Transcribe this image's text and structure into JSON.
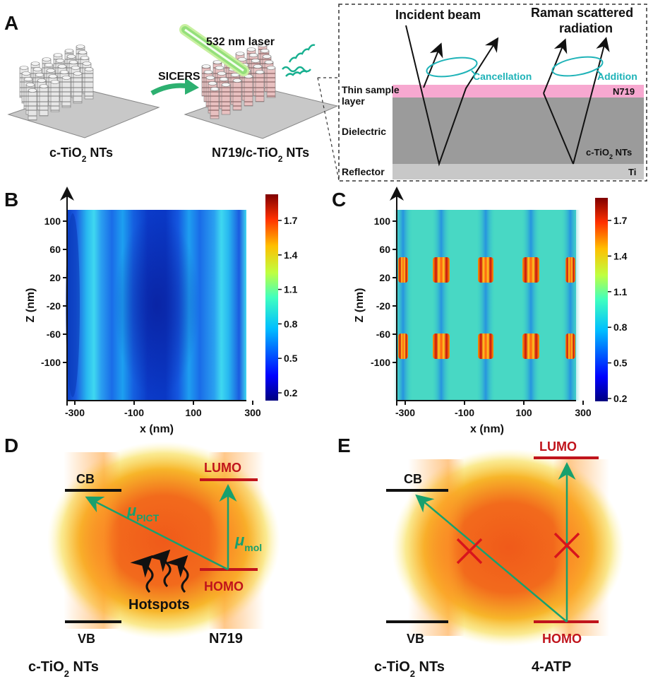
{
  "panels": {
    "a": "A",
    "b": "B",
    "c": "C",
    "d": "D",
    "e": "E"
  },
  "panel_a": {
    "left_label": "c-TiO",
    "left_sub": "2",
    "left_suffix": " NTs",
    "right_label": "N719/c-TiO",
    "right_sub": "2",
    "right_suffix": " NTs",
    "arrow_label": "SICERS",
    "laser_label": "532 nm laser",
    "incident_beam": "Incident beam",
    "raman_line1": "Raman scattered",
    "raman_line2": "radiation",
    "cancellation": "Cancellation",
    "addition": "Addition",
    "thin_sample_1": "Thin sample",
    "thin_sample_2": "layer",
    "dielectric": "Dielectric",
    "reflector": "Reflector",
    "n719": "N719",
    "ctio2": "c-TiO",
    "ctio2_sub": "2",
    "ctio2_suffix": " NTs",
    "ti": "Ti",
    "colors": {
      "pink": "#f7a8d0",
      "dielectric": "#9b9b9b",
      "reflector": "#c8c8c8",
      "cyan": "#1fb3b8"
    }
  },
  "maps": {
    "ylabel": "Z (nm)",
    "xlabel": "x (nm)",
    "yticks": [
      "100",
      "60",
      "20",
      "-20",
      "-60",
      "-100"
    ],
    "xticks": [
      "-300",
      "-100",
      "100",
      "300"
    ],
    "colorbar_ticks": [
      "1.7",
      "1.4",
      "1.1",
      "0.8",
      "0.5",
      "0.2"
    ]
  },
  "panel_d": {
    "cb": "CB",
    "vb": "VB",
    "lumo": "LUMO",
    "homo": "HOMO",
    "mu": "μ",
    "mu_pict_sub": "PICT",
    "mu_mol_sub": "mol",
    "hotspots": "Hotspots",
    "molecule": "N719",
    "substrate": "c-TiO",
    "substrate_sub": "2",
    "substrate_suffix": " NTs"
  },
  "panel_e": {
    "cb": "CB",
    "vb": "VB",
    "lumo": "LUMO",
    "homo": "HOMO",
    "molecule": "4-ATP",
    "substrate": "c-TiO",
    "substrate_sub": "2",
    "substrate_suffix": " NTs"
  }
}
